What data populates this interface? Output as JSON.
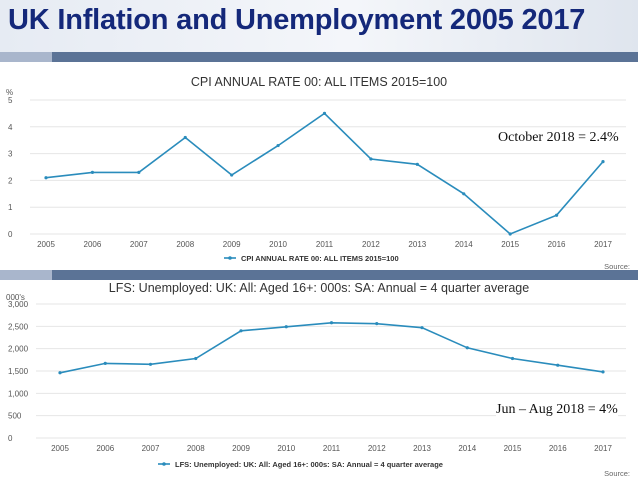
{
  "slide": {
    "title": "UK Inflation and Unemployment 2005 2017"
  },
  "annotations": {
    "cpi_note": "October 2018 = 2.4%",
    "unemployment_note": "Jun – Aug 2018 = 4%"
  },
  "colors": {
    "series": "#2a8cbc",
    "title_text": "#14287a",
    "rule_dark": "#5b7396",
    "rule_light": "#a9b6cc"
  },
  "chart_data": [
    {
      "type": "line",
      "title": "CPI ANNUAL RATE 00: ALL ITEMS 2015=100",
      "ylabel": "%",
      "xlabel": "",
      "x": [
        "2005",
        "2006",
        "2007",
        "2008",
        "2009",
        "2010",
        "2011",
        "2012",
        "2013",
        "2014",
        "2015",
        "2016",
        "2017"
      ],
      "series": [
        {
          "name": "CPI ANNUAL RATE 00: ALL ITEMS 2015=100",
          "values": [
            2.1,
            2.3,
            2.3,
            3.6,
            2.2,
            3.3,
            4.5,
            2.8,
            2.6,
            1.5,
            0.0,
            0.7,
            2.7
          ]
        }
      ],
      "yticks": [
        "0",
        "1",
        "2",
        "3",
        "4",
        "5"
      ],
      "ylim": [
        0,
        5
      ],
      "grid": true,
      "legend": "bottom-center",
      "source_label": "Source:"
    },
    {
      "type": "line",
      "title": "LFS: Unemployed: UK: All: Aged 16+: 000s: SA: Annual = 4 quarter average",
      "ylabel": "000's",
      "xlabel": "",
      "x": [
        "2005",
        "2006",
        "2007",
        "2008",
        "2009",
        "2010",
        "2011",
        "2012",
        "2013",
        "2014",
        "2015",
        "2016",
        "2017"
      ],
      "series": [
        {
          "name": "LFS: Unemployed: UK: All: Aged 16+: 000s: SA: Annual = 4 quarter average",
          "values": [
            1460,
            1670,
            1650,
            1780,
            2400,
            2490,
            2580,
            2560,
            2470,
            2020,
            1780,
            1630,
            1480
          ]
        }
      ],
      "yticks": [
        "0",
        "500",
        "1,000",
        "1,500",
        "2,000",
        "2,500",
        "3,000"
      ],
      "ylim": [
        0,
        3000
      ],
      "grid": true,
      "legend": "bottom-center",
      "source_label": "Source:"
    }
  ]
}
